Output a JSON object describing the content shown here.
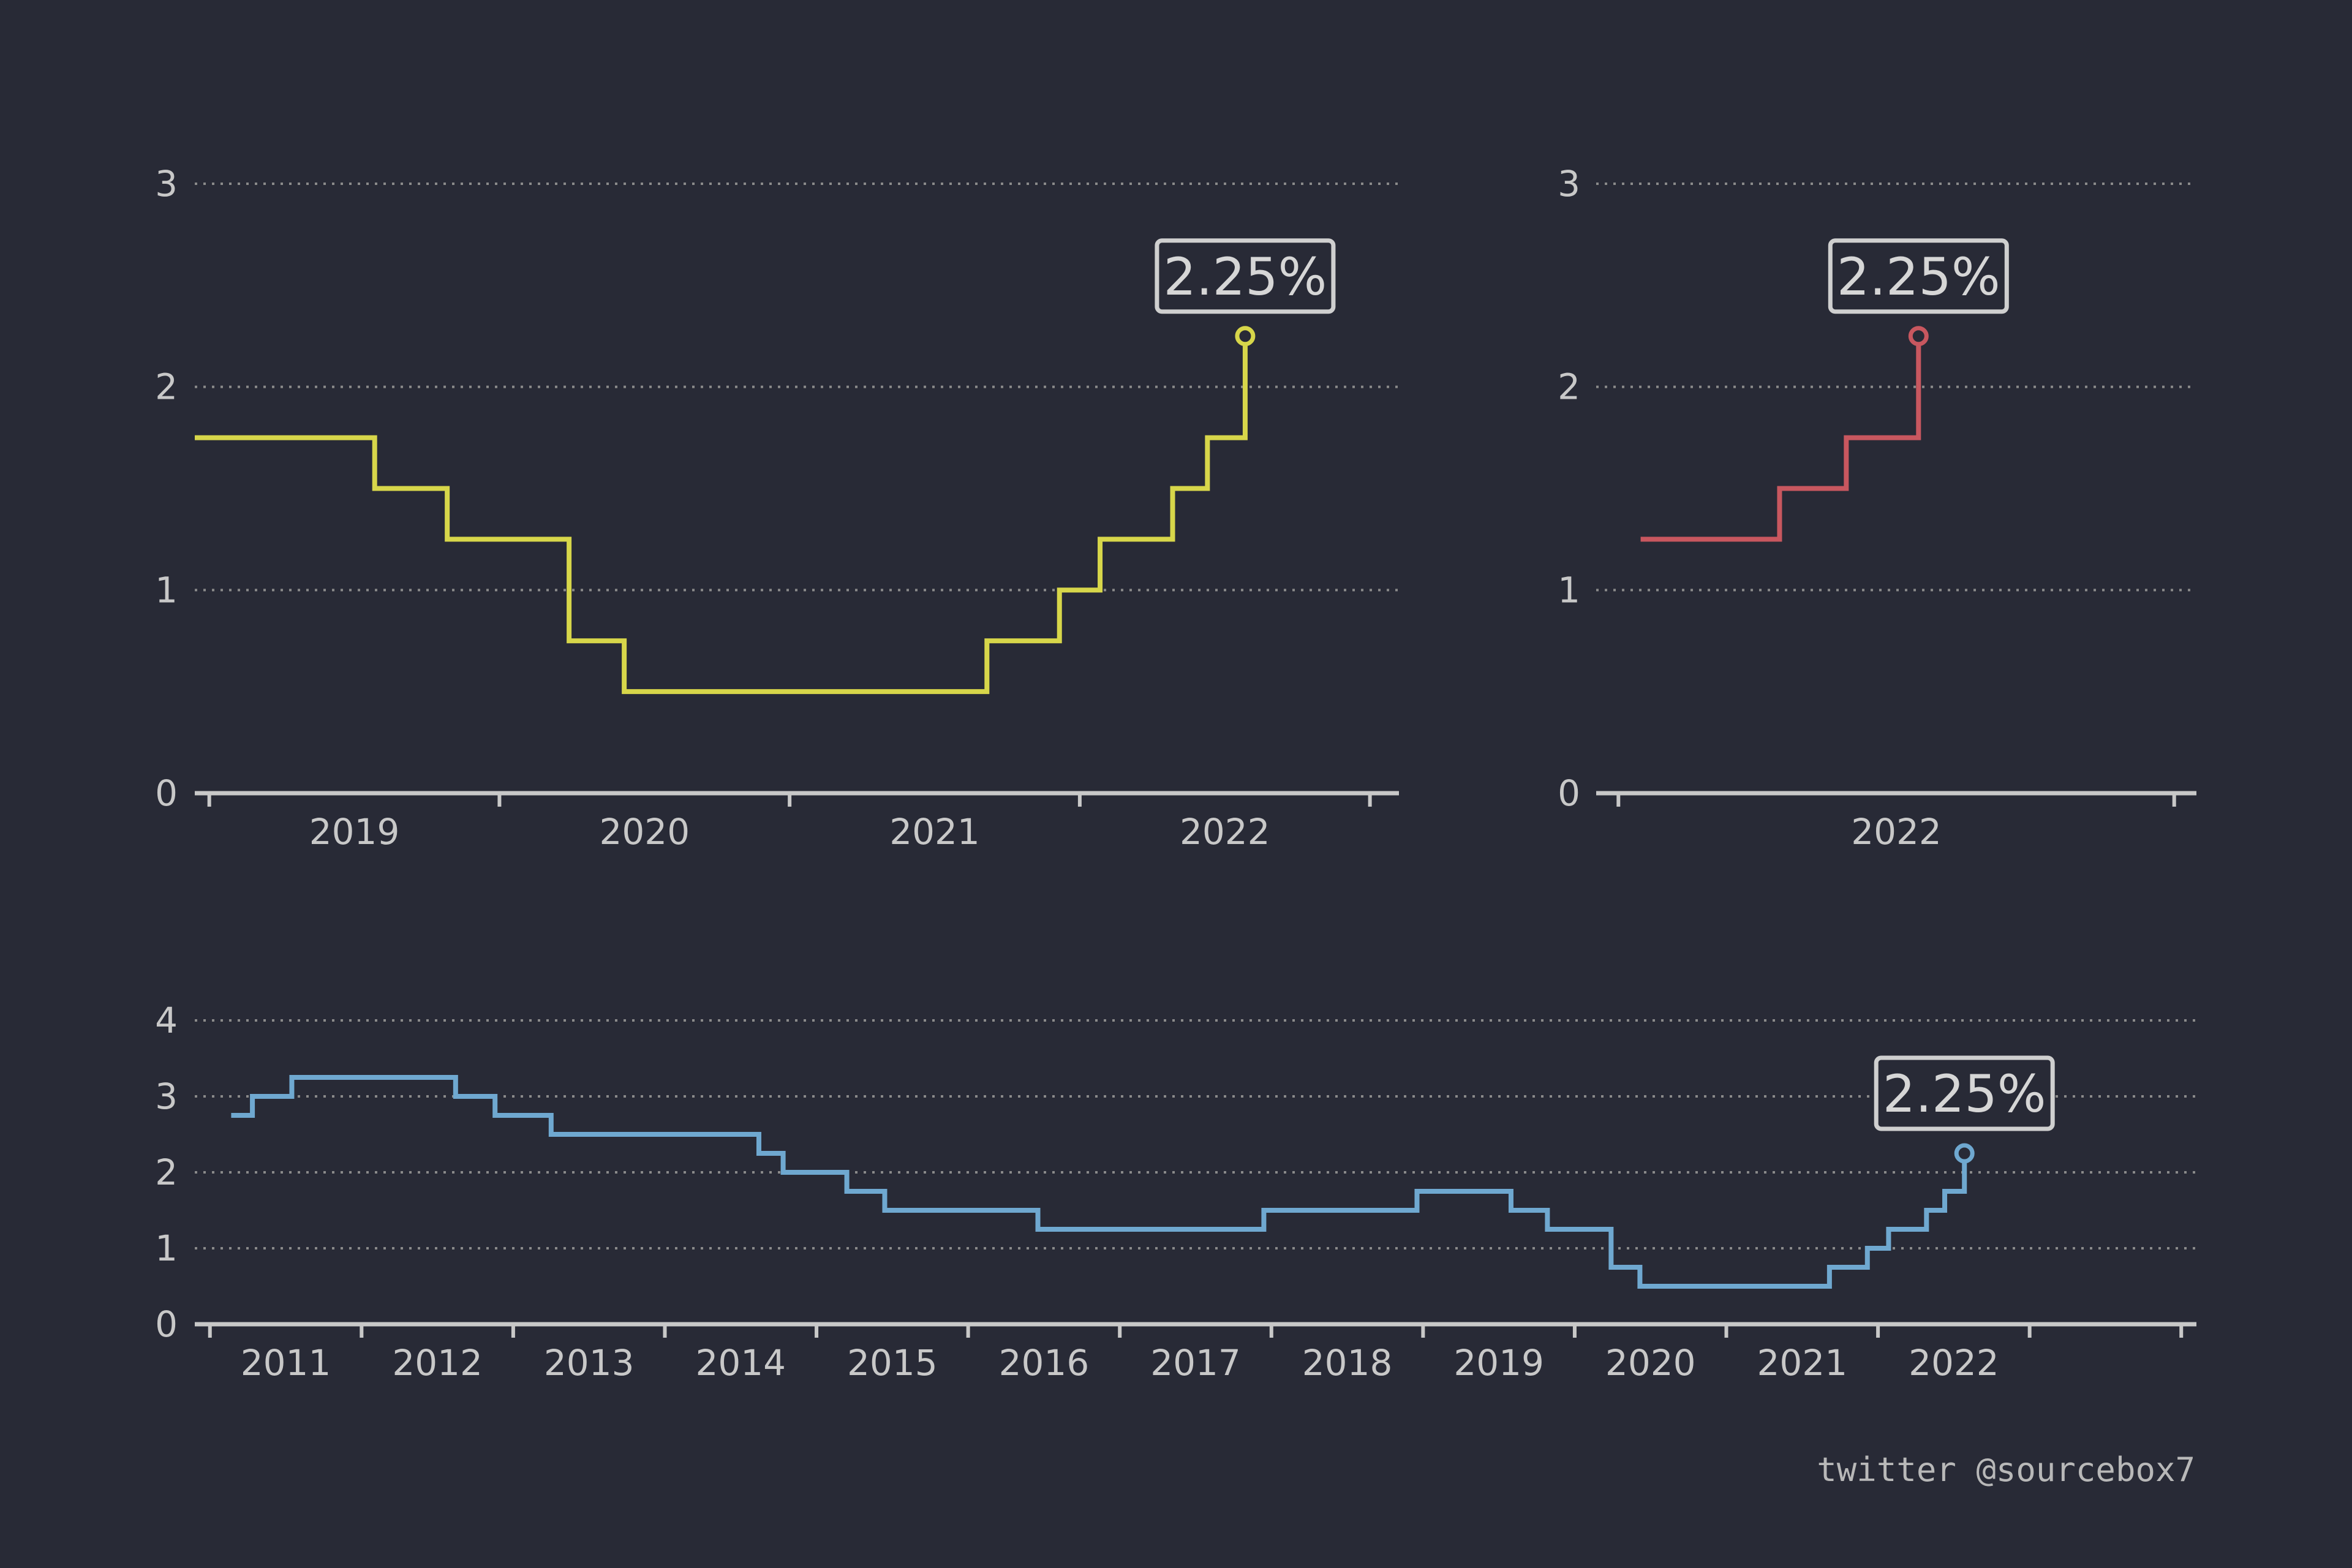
{
  "credit": "twitter @sourcebox7",
  "colors": {
    "background": "#282a36",
    "axis": "#c8c8c8",
    "grid": "#8a8a8a",
    "text": "#c8c8c8"
  },
  "chart_data": [
    {
      "id": "recent",
      "type": "line",
      "step": true,
      "color": "#d7d64a",
      "ylim": [
        0,
        3
      ],
      "yticks": [
        0,
        1,
        2,
        3
      ],
      "xlim": [
        2018.45,
        2022.6
      ],
      "xticks": [
        2018.5,
        2019.5,
        2020.5,
        2021.5,
        2022.5
      ],
      "xticklabels": [
        {
          "x": 2019.0,
          "label": "2019"
        },
        {
          "x": 2020.0,
          "label": "2020"
        },
        {
          "x": 2021.0,
          "label": "2021"
        },
        {
          "x": 2022.0,
          "label": "2022"
        }
      ],
      "grid": true,
      "series": [
        {
          "points": [
            [
              2018.45,
              1.75
            ],
            [
              2019.07,
              1.5
            ],
            [
              2019.32,
              1.25
            ],
            [
              2019.74,
              0.75
            ],
            [
              2019.93,
              0.5
            ],
            [
              2021.18,
              0.75
            ],
            [
              2021.43,
              1.0
            ],
            [
              2021.57,
              1.25
            ],
            [
              2021.82,
              1.5
            ],
            [
              2021.94,
              1.75
            ],
            [
              2022.07,
              2.25
            ]
          ],
          "end_x": 2022.07
        }
      ],
      "annotation": {
        "x": 2022.07,
        "y": 2.25,
        "label": "2.25%"
      }
    },
    {
      "id": "current-year",
      "type": "line",
      "step": true,
      "color": "#c8575f",
      "ylim": [
        0,
        3
      ],
      "yticks": [
        0,
        1,
        2,
        3
      ],
      "xlim": [
        2021.46,
        2022.54
      ],
      "xticks": [
        2021.5,
        2022.5
      ],
      "xticklabels": [
        {
          "x": 2022.0,
          "label": "2022"
        }
      ],
      "grid": true,
      "series": [
        {
          "points": [
            [
              2021.54,
              1.25
            ],
            [
              2021.79,
              1.5
            ],
            [
              2021.91,
              1.75
            ],
            [
              2022.04,
              2.25
            ]
          ],
          "end_x": 2022.04
        }
      ],
      "annotation": {
        "x": 2022.04,
        "y": 2.25,
        "label": "2.25%"
      }
    },
    {
      "id": "long-run",
      "type": "line",
      "step": true,
      "color": "#6fa8d0",
      "ylim": [
        0,
        4
      ],
      "yticks": [
        0,
        1,
        2,
        3,
        4
      ],
      "xlim": [
        2010.4,
        2023.6
      ],
      "xticks": [
        2010.5,
        2011.5,
        2012.5,
        2013.5,
        2014.5,
        2015.5,
        2016.5,
        2017.5,
        2018.5,
        2019.5,
        2020.5,
        2021.5,
        2022.5,
        2023.5
      ],
      "xticklabels": [
        {
          "x": 2011.0,
          "label": "2011"
        },
        {
          "x": 2012.0,
          "label": "2012"
        },
        {
          "x": 2013.0,
          "label": "2013"
        },
        {
          "x": 2014.0,
          "label": "2014"
        },
        {
          "x": 2015.0,
          "label": "2015"
        },
        {
          "x": 2016.0,
          "label": "2016"
        },
        {
          "x": 2017.0,
          "label": "2017"
        },
        {
          "x": 2018.0,
          "label": "2018"
        },
        {
          "x": 2019.0,
          "label": "2019"
        },
        {
          "x": 2020.0,
          "label": "2020"
        },
        {
          "x": 2021.0,
          "label": "2021"
        },
        {
          "x": 2022.0,
          "label": "2022"
        }
      ],
      "grid": true,
      "series": [
        {
          "points": [
            [
              2010.64,
              2.75
            ],
            [
              2010.78,
              3.0
            ],
            [
              2011.04,
              3.25
            ],
            [
              2012.12,
              3.0
            ],
            [
              2012.38,
              2.75
            ],
            [
              2012.75,
              2.5
            ],
            [
              2014.12,
              2.25
            ],
            [
              2014.28,
              2.0
            ],
            [
              2014.7,
              1.75
            ],
            [
              2014.95,
              1.5
            ],
            [
              2015.96,
              1.25
            ],
            [
              2017.45,
              1.5
            ],
            [
              2018.46,
              1.75
            ],
            [
              2019.08,
              1.5
            ],
            [
              2019.32,
              1.25
            ],
            [
              2019.74,
              0.75
            ],
            [
              2019.93,
              0.5
            ],
            [
              2021.18,
              0.75
            ],
            [
              2021.43,
              1.0
            ],
            [
              2021.57,
              1.25
            ],
            [
              2021.82,
              1.5
            ],
            [
              2021.94,
              1.75
            ],
            [
              2022.07,
              2.25
            ]
          ],
          "end_x": 2022.07
        }
      ],
      "annotation": {
        "x": 2022.07,
        "y": 2.25,
        "label": "2.25%"
      }
    }
  ]
}
